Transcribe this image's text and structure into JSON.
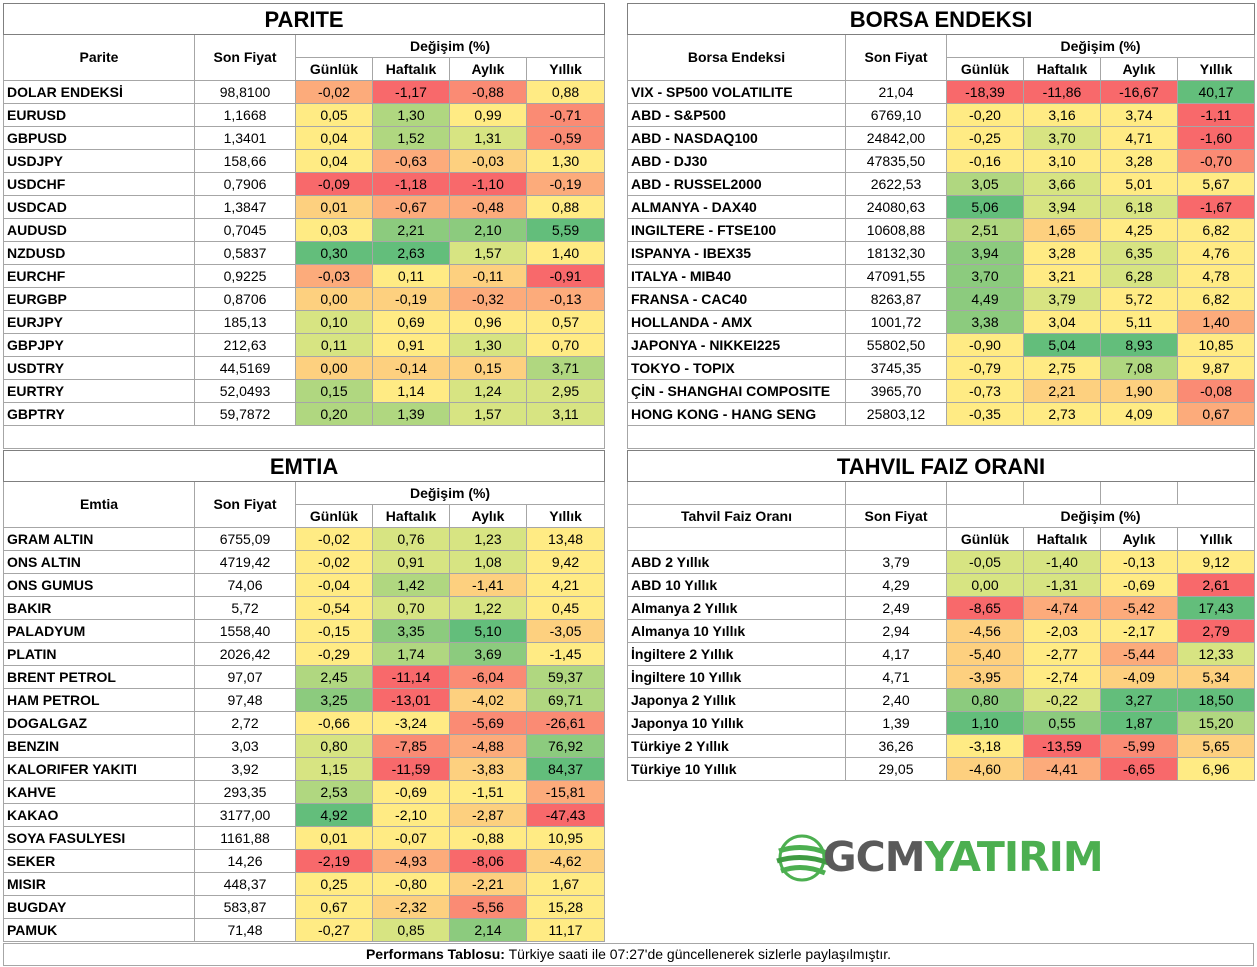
{
  "colors": {
    "dark_red": "#f8696b",
    "red": "#fa8b74",
    "orange": "#fcab7b",
    "light_orange": "#fdd07f",
    "yellow": "#ffeb84",
    "light_green": "#d7e482",
    "green": "#b0d780",
    "mid_green": "#8ccb7e",
    "dark_green": "#63be7b"
  },
  "parite": {
    "title": "PARITE",
    "col_name": "Parite",
    "col_price": "Son Fiyat",
    "col_change": "Değişim (%)",
    "periods": [
      "Günlük",
      "Haftalık",
      "Aylık",
      "Yıllık"
    ],
    "rows": [
      {
        "name": "DOLAR ENDEKSİ",
        "price": "98,8100",
        "vals": [
          "-0,02",
          "-1,17",
          "-0,88",
          "0,88"
        ],
        "c": [
          "orange",
          "dark_red",
          "red",
          "yellow"
        ]
      },
      {
        "name": "EURUSD",
        "price": "1,1668",
        "vals": [
          "0,05",
          "1,30",
          "0,99",
          "-0,71"
        ],
        "c": [
          "yellow",
          "green",
          "yellow",
          "red"
        ]
      },
      {
        "name": "GBPUSD",
        "price": "1,3401",
        "vals": [
          "0,04",
          "1,52",
          "1,31",
          "-0,59"
        ],
        "c": [
          "yellow",
          "green",
          "light_green",
          "red"
        ]
      },
      {
        "name": "USDJPY",
        "price": "158,66",
        "vals": [
          "0,04",
          "-0,63",
          "-0,03",
          "1,30"
        ],
        "c": [
          "yellow",
          "orange",
          "light_orange",
          "yellow"
        ]
      },
      {
        "name": "USDCHF",
        "price": "0,7906",
        "vals": [
          "-0,09",
          "-1,18",
          "-1,10",
          "-0,19"
        ],
        "c": [
          "dark_red",
          "dark_red",
          "dark_red",
          "orange"
        ]
      },
      {
        "name": "USDCAD",
        "price": "1,3847",
        "vals": [
          "0,01",
          "-0,67",
          "-0,48",
          "0,88"
        ],
        "c": [
          "light_orange",
          "orange",
          "orange",
          "yellow"
        ]
      },
      {
        "name": "AUDUSD",
        "price": "0,7045",
        "vals": [
          "0,03",
          "2,21",
          "2,10",
          "5,59"
        ],
        "c": [
          "yellow",
          "mid_green",
          "mid_green",
          "dark_green"
        ]
      },
      {
        "name": "NZDUSD",
        "price": "0,5837",
        "vals": [
          "0,30",
          "2,63",
          "1,57",
          "1,40"
        ],
        "c": [
          "dark_green",
          "dark_green",
          "light_green",
          "yellow"
        ]
      },
      {
        "name": "EURCHF",
        "price": "0,9225",
        "vals": [
          "-0,03",
          "0,11",
          "-0,11",
          "-0,91"
        ],
        "c": [
          "orange",
          "yellow",
          "light_orange",
          "dark_red"
        ]
      },
      {
        "name": "EURGBP",
        "price": "0,8706",
        "vals": [
          "0,00",
          "-0,19",
          "-0,32",
          "-0,13"
        ],
        "c": [
          "light_orange",
          "light_orange",
          "orange",
          "orange"
        ]
      },
      {
        "name": "EURJPY",
        "price": "185,13",
        "vals": [
          "0,10",
          "0,69",
          "0,96",
          "0,57"
        ],
        "c": [
          "light_green",
          "yellow",
          "yellow",
          "yellow"
        ]
      },
      {
        "name": "GBPJPY",
        "price": "212,63",
        "vals": [
          "0,11",
          "0,91",
          "1,30",
          "0,70"
        ],
        "c": [
          "light_green",
          "yellow",
          "light_green",
          "yellow"
        ]
      },
      {
        "name": "USDTRY",
        "price": "44,5169",
        "vals": [
          "0,00",
          "-0,14",
          "0,15",
          "3,71"
        ],
        "c": [
          "light_orange",
          "light_orange",
          "light_orange",
          "green"
        ]
      },
      {
        "name": "EURTRY",
        "price": "52,0493",
        "vals": [
          "0,15",
          "1,14",
          "1,24",
          "2,95"
        ],
        "c": [
          "green",
          "yellow",
          "light_green",
          "light_green"
        ]
      },
      {
        "name": "GBPTRY",
        "price": "59,7872",
        "vals": [
          "0,20",
          "1,39",
          "1,57",
          "3,11"
        ],
        "c": [
          "green",
          "green",
          "light_green",
          "light_green"
        ]
      }
    ]
  },
  "borsa": {
    "title": "BORSA ENDEKSI",
    "col_name": "Borsa Endeksi",
    "col_price": "Son Fiyat",
    "col_change": "Değişim (%)",
    "periods": [
      "Günlük",
      "Haftalık",
      "Aylık",
      "Yıllık"
    ],
    "rows": [
      {
        "name": "VIX  - SP500 VOLATILITE",
        "price": "21,04",
        "vals": [
          "-18,39",
          "-11,86",
          "-16,67",
          "40,17"
        ],
        "c": [
          "dark_red",
          "dark_red",
          "dark_red",
          "dark_green"
        ]
      },
      {
        "name": "ABD - S&P500",
        "price": "6769,10",
        "vals": [
          "-0,20",
          "3,16",
          "3,74",
          "-1,11"
        ],
        "c": [
          "yellow",
          "yellow",
          "yellow",
          "dark_red"
        ]
      },
      {
        "name": "ABD - NASDAQ100",
        "price": "24842,00",
        "vals": [
          "-0,25",
          "3,70",
          "4,71",
          "-1,60"
        ],
        "c": [
          "yellow",
          "light_green",
          "yellow",
          "dark_red"
        ]
      },
      {
        "name": "ABD - DJ30",
        "price": "47835,50",
        "vals": [
          "-0,16",
          "3,10",
          "3,28",
          "-0,70"
        ],
        "c": [
          "yellow",
          "yellow",
          "yellow",
          "red"
        ]
      },
      {
        "name": "ABD - RUSSEL2000",
        "price": "2622,53",
        "vals": [
          "3,05",
          "3,66",
          "5,01",
          "5,67"
        ],
        "c": [
          "green",
          "light_green",
          "yellow",
          "yellow"
        ]
      },
      {
        "name": "ALMANYA - DAX40",
        "price": "24080,63",
        "vals": [
          "5,06",
          "3,94",
          "6,18",
          "-1,67"
        ],
        "c": [
          "dark_green",
          "light_green",
          "light_green",
          "dark_red"
        ]
      },
      {
        "name": "INGILTERE - FTSE100",
        "price": "10608,88",
        "vals": [
          "2,51",
          "1,65",
          "4,25",
          "6,82"
        ],
        "c": [
          "green",
          "light_orange",
          "yellow",
          "yellow"
        ]
      },
      {
        "name": "ISPANYA - IBEX35",
        "price": "18132,30",
        "vals": [
          "3,94",
          "3,28",
          "6,35",
          "4,76"
        ],
        "c": [
          "mid_green",
          "yellow",
          "light_green",
          "yellow"
        ]
      },
      {
        "name": "ITALYA - MIB40",
        "price": "47091,55",
        "vals": [
          "3,70",
          "3,21",
          "6,28",
          "4,78"
        ],
        "c": [
          "mid_green",
          "yellow",
          "light_green",
          "yellow"
        ]
      },
      {
        "name": "FRANSA - CAC40",
        "price": "8263,87",
        "vals": [
          "4,49",
          "3,79",
          "5,72",
          "6,82"
        ],
        "c": [
          "mid_green",
          "light_green",
          "yellow",
          "yellow"
        ]
      },
      {
        "name": "HOLLANDA - AMX",
        "price": "1001,72",
        "vals": [
          "3,38",
          "3,04",
          "5,11",
          "1,40"
        ],
        "c": [
          "mid_green",
          "yellow",
          "yellow",
          "orange"
        ]
      },
      {
        "name": "JAPONYA - NIKKEI225",
        "price": "55802,50",
        "vals": [
          "-0,90",
          "5,04",
          "8,93",
          "10,85"
        ],
        "c": [
          "yellow",
          "dark_green",
          "dark_green",
          "yellow"
        ]
      },
      {
        "name": "TOKYO - TOPIX",
        "price": "3745,35",
        "vals": [
          "-0,79",
          "2,75",
          "7,08",
          "9,87"
        ],
        "c": [
          "yellow",
          "yellow",
          "green",
          "yellow"
        ]
      },
      {
        "name": "ÇİN - SHANGHAI COMPOSITE",
        "price": "3965,70",
        "vals": [
          "-0,73",
          "2,21",
          "1,90",
          "-0,08"
        ],
        "c": [
          "yellow",
          "light_orange",
          "light_orange",
          "red"
        ]
      },
      {
        "name": "HONG KONG - HANG SENG",
        "price": "25803,12",
        "vals": [
          "-0,35",
          "2,73",
          "4,09",
          "0,67"
        ],
        "c": [
          "yellow",
          "yellow",
          "yellow",
          "orange"
        ]
      }
    ]
  },
  "emtia": {
    "title": "EMTIA",
    "col_name": "Emtia",
    "col_price": "Son Fiyat",
    "col_change": "Değişim (%)",
    "periods": [
      "Günlük",
      "Haftalık",
      "Aylık",
      "Yıllık"
    ],
    "rows": [
      {
        "name": "GRAM ALTIN",
        "price": "6755,09",
        "vals": [
          "-0,02",
          "0,76",
          "1,23",
          "13,48"
        ],
        "c": [
          "yellow",
          "light_green",
          "light_green",
          "yellow"
        ]
      },
      {
        "name": "ONS ALTIN",
        "price": "4719,42",
        "vals": [
          "-0,02",
          "0,91",
          "1,08",
          "9,42"
        ],
        "c": [
          "yellow",
          "light_green",
          "light_green",
          "yellow"
        ]
      },
      {
        "name": "ONS GUMUS",
        "price": "74,06",
        "vals": [
          "-0,04",
          "1,42",
          "-1,41",
          "4,21"
        ],
        "c": [
          "yellow",
          "green",
          "light_orange",
          "yellow"
        ]
      },
      {
        "name": "BAKIR",
        "price": "5,72",
        "vals": [
          "-0,54",
          "0,70",
          "1,22",
          "0,45"
        ],
        "c": [
          "yellow",
          "light_green",
          "light_green",
          "yellow"
        ]
      },
      {
        "name": "PALADYUM",
        "price": "1558,40",
        "vals": [
          "-0,15",
          "3,35",
          "5,10",
          "-3,05"
        ],
        "c": [
          "yellow",
          "mid_green",
          "dark_green",
          "light_orange"
        ]
      },
      {
        "name": "PLATIN",
        "price": "2026,42",
        "vals": [
          "-0,29",
          "1,74",
          "3,69",
          "-1,45"
        ],
        "c": [
          "yellow",
          "green",
          "mid_green",
          "yellow"
        ]
      },
      {
        "name": "BRENT PETROL",
        "price": "97,07",
        "vals": [
          "2,45",
          "-11,14",
          "-6,04",
          "59,37"
        ],
        "c": [
          "green",
          "dark_red",
          "red",
          "green"
        ]
      },
      {
        "name": "HAM PETROL",
        "price": "97,48",
        "vals": [
          "3,25",
          "-13,01",
          "-4,02",
          "69,71"
        ],
        "c": [
          "mid_green",
          "dark_red",
          "light_orange",
          "green"
        ]
      },
      {
        "name": "DOGALGAZ",
        "price": "2,72",
        "vals": [
          "-0,66",
          "-3,24",
          "-5,69",
          "-26,61"
        ],
        "c": [
          "yellow",
          "yellow",
          "red",
          "red"
        ]
      },
      {
        "name": "BENZIN",
        "price": "3,03",
        "vals": [
          "0,80",
          "-7,85",
          "-4,88",
          "76,92"
        ],
        "c": [
          "light_green",
          "red",
          "orange",
          "mid_green"
        ]
      },
      {
        "name": "KALORIFER YAKITI",
        "price": "3,92",
        "vals": [
          "1,15",
          "-11,59",
          "-3,83",
          "84,37"
        ],
        "c": [
          "light_green",
          "dark_red",
          "light_orange",
          "dark_green"
        ]
      },
      {
        "name": "KAHVE",
        "price": "293,35",
        "vals": [
          "2,53",
          "-0,69",
          "-1,51",
          "-15,81"
        ],
        "c": [
          "green",
          "yellow",
          "yellow",
          "orange"
        ]
      },
      {
        "name": "KAKAO",
        "price": "3177,00",
        "vals": [
          "4,92",
          "-2,10",
          "-2,87",
          "-47,43"
        ],
        "c": [
          "dark_green",
          "yellow",
          "light_orange",
          "dark_red"
        ]
      },
      {
        "name": "SOYA FASULYESI",
        "price": "1161,88",
        "vals": [
          "0,01",
          "-0,07",
          "-0,88",
          "10,95"
        ],
        "c": [
          "yellow",
          "yellow",
          "yellow",
          "yellow"
        ]
      },
      {
        "name": "SEKER",
        "price": "14,26",
        "vals": [
          "-2,19",
          "-4,93",
          "-8,06",
          "-4,62"
        ],
        "c": [
          "dark_red",
          "orange",
          "dark_red",
          "light_orange"
        ]
      },
      {
        "name": "MISIR",
        "price": "448,37",
        "vals": [
          "0,25",
          "-0,80",
          "-2,21",
          "1,67"
        ],
        "c": [
          "yellow",
          "yellow",
          "light_orange",
          "yellow"
        ]
      },
      {
        "name": "BUGDAY",
        "price": "583,87",
        "vals": [
          "0,67",
          "-2,32",
          "-5,56",
          "15,28"
        ],
        "c": [
          "yellow",
          "light_orange",
          "red",
          "yellow"
        ]
      },
      {
        "name": "PAMUK",
        "price": "71,48",
        "vals": [
          "-0,27",
          "0,85",
          "2,14",
          "11,17"
        ],
        "c": [
          "yellow",
          "light_green",
          "mid_green",
          "yellow"
        ]
      }
    ]
  },
  "tahvil": {
    "title": "TAHVIL FAIZ ORANI",
    "col_name": "Tahvil Faiz Oranı",
    "col_price": "Son Fiyat",
    "col_change": "Değişim (%)",
    "periods": [
      "Günlük",
      "Haftalık",
      "Aylık",
      "Yıllık"
    ],
    "rows": [
      {
        "name": "ABD 2 Yıllık",
        "price": "3,79",
        "vals": [
          "-0,05",
          "-1,40",
          "-0,13",
          "9,12"
        ],
        "c": [
          "light_green",
          "light_green",
          "yellow",
          "yellow"
        ]
      },
      {
        "name": "ABD 10 Yıllık",
        "price": "4,29",
        "vals": [
          "0,00",
          "-1,31",
          "-0,69",
          "2,61"
        ],
        "c": [
          "light_green",
          "light_green",
          "yellow",
          "dark_red"
        ]
      },
      {
        "name": "Almanya 2 Yıllık",
        "price": "2,49",
        "vals": [
          "-8,65",
          "-4,74",
          "-5,42",
          "17,43"
        ],
        "c": [
          "dark_red",
          "orange",
          "orange",
          "dark_green"
        ]
      },
      {
        "name": "Almanya 10 Yıllık",
        "price": "2,94",
        "vals": [
          "-4,56",
          "-2,03",
          "-2,17",
          "2,79"
        ],
        "c": [
          "light_orange",
          "yellow",
          "yellow",
          "dark_red"
        ]
      },
      {
        "name": "İngiltere 2 Yıllık",
        "price": "4,17",
        "vals": [
          "-5,40",
          "-2,77",
          "-5,44",
          "12,33"
        ],
        "c": [
          "light_orange",
          "yellow",
          "orange",
          "light_green"
        ]
      },
      {
        "name": "İngiltere 10 Yıllık",
        "price": "4,71",
        "vals": [
          "-3,95",
          "-2,74",
          "-4,09",
          "5,34"
        ],
        "c": [
          "light_orange",
          "yellow",
          "light_orange",
          "light_orange"
        ]
      },
      {
        "name": "Japonya 2 Yıllık",
        "price": "2,40",
        "vals": [
          "0,80",
          "-0,22",
          "3,27",
          "18,50"
        ],
        "c": [
          "mid_green",
          "light_green",
          "dark_green",
          "dark_green"
        ]
      },
      {
        "name": "Japonya 10 Yıllık",
        "price": "1,39",
        "vals": [
          "1,10",
          "0,55",
          "1,87",
          "15,20"
        ],
        "c": [
          "dark_green",
          "mid_green",
          "dark_green",
          "green"
        ]
      },
      {
        "name": "Türkiye 2 Yıllık",
        "price": "36,26",
        "vals": [
          "-3,18",
          "-13,59",
          "-5,99",
          "5,65"
        ],
        "c": [
          "yellow",
          "dark_red",
          "red",
          "light_orange"
        ]
      },
      {
        "name": "Türkiye 10 Yıllık",
        "price": "29,05",
        "vals": [
          "-4,60",
          "-4,41",
          "-6,65",
          "6,96"
        ],
        "c": [
          "light_orange",
          "orange",
          "dark_red",
          "yellow"
        ]
      }
    ]
  },
  "logo": {
    "gcm": "GCM",
    "yatirim": "YATIRIM"
  },
  "footer": {
    "bold": "Performans Tablosu:",
    "text": " Türkiye saati ile 07:27'de güncellenerek sizlerle paylaşılmıştır."
  }
}
